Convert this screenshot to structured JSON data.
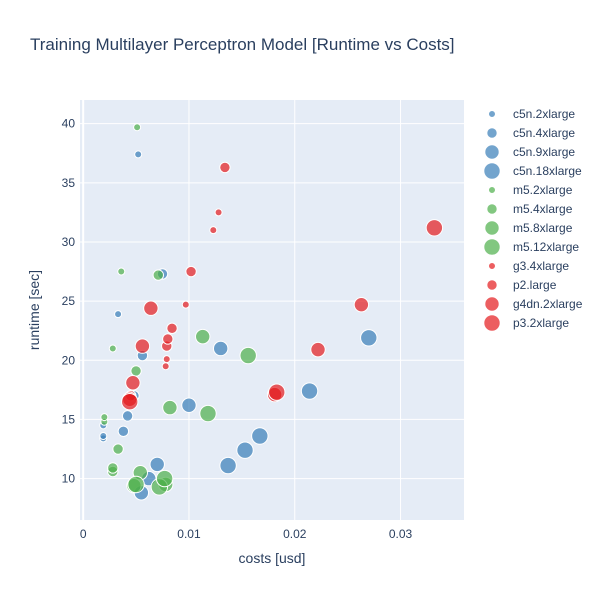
{
  "chart_data": {
    "type": "scatter",
    "title": "Training Multilayer Perceptron Model [Runtime vs Costs]",
    "xlabel": "costs [usd]",
    "ylabel": "runtime [sec]",
    "xlim": [
      -0.0003,
      0.036
    ],
    "ylim": [
      6.5,
      42
    ],
    "xticks": [
      0,
      0.01,
      0.02,
      0.03
    ],
    "xtick_labels": [
      "0",
      "0.01",
      "0.02",
      "0.03"
    ],
    "yticks": [
      10,
      15,
      20,
      25,
      30,
      35,
      40
    ],
    "ytick_labels": [
      "10",
      "15",
      "20",
      "25",
      "30",
      "35",
      "40"
    ],
    "grid": true,
    "legend_position": "right",
    "series": [
      {
        "name": "c5n.2xlarge",
        "color": "#377eb8",
        "size": 1,
        "x": [
          0.0019,
          0.0019,
          0.0019,
          0.0033,
          0.0052
        ],
        "y": [
          13.4,
          13.6,
          14.5,
          23.9,
          37.4
        ]
      },
      {
        "name": "c5n.4xlarge",
        "color": "#377eb8",
        "size": 2,
        "x": [
          0.0038,
          0.0042,
          0.0048,
          0.0056,
          0.0075
        ],
        "y": [
          14.0,
          15.3,
          17.0,
          20.4,
          27.3
        ]
      },
      {
        "name": "c5n.9xlarge",
        "color": "#377eb8",
        "size": 3,
        "x": [
          0.0055,
          0.0062,
          0.007,
          0.01,
          0.013
        ],
        "y": [
          8.8,
          10.0,
          11.2,
          16.2,
          21.0
        ]
      },
      {
        "name": "c5n.18xlarge",
        "color": "#377eb8",
        "size": 4,
        "x": [
          0.0137,
          0.0153,
          0.0167,
          0.0214,
          0.027
        ],
        "y": [
          11.1,
          12.4,
          13.6,
          17.4,
          21.9
        ]
      },
      {
        "name": "m5.2xlarge",
        "color": "#4daf4a",
        "size": 1,
        "x": [
          0.002,
          0.002,
          0.0028,
          0.0036,
          0.0051
        ],
        "y": [
          14.8,
          15.2,
          21.0,
          27.5,
          39.7
        ]
      },
      {
        "name": "m5.4xlarge",
        "color": "#4daf4a",
        "size": 2,
        "x": [
          0.0028,
          0.0028,
          0.0033,
          0.005,
          0.0071
        ],
        "y": [
          10.6,
          10.9,
          12.5,
          19.1,
          27.2
        ]
      },
      {
        "name": "m5.8xlarge",
        "color": "#4daf4a",
        "size": 3,
        "x": [
          0.0048,
          0.0054,
          0.0082,
          0.0113,
          0.0078
        ],
        "y": [
          9.4,
          10.5,
          16.0,
          22.0,
          9.5
        ]
      },
      {
        "name": "m5.12xlarge",
        "color": "#4daf4a",
        "size": 4,
        "x": [
          0.005,
          0.0072,
          0.0077,
          0.0118,
          0.0156
        ],
        "y": [
          9.5,
          9.3,
          10.0,
          15.5,
          20.4
        ]
      },
      {
        "name": "g3.4xlarge",
        "color": "#e41a1c",
        "size": 1,
        "x": [
          0.0078,
          0.0079,
          0.0097,
          0.0123,
          0.0128
        ],
        "y": [
          19.5,
          20.1,
          24.7,
          31.0,
          32.5
        ]
      },
      {
        "name": "p2.large",
        "color": "#e41a1c",
        "size": 2,
        "x": [
          0.0045,
          0.0079,
          0.008,
          0.0084,
          0.0102,
          0.0134
        ],
        "y": [
          17.0,
          21.2,
          21.8,
          22.7,
          27.5,
          36.3
        ]
      },
      {
        "name": "g4dn.2xlarge",
        "color": "#e41a1c",
        "size": 3,
        "x": [
          0.0044,
          0.0047,
          0.0056,
          0.0064,
          0.0181,
          0.0222,
          0.0263
        ],
        "y": [
          16.7,
          18.1,
          21.2,
          24.4,
          17.1,
          20.9,
          24.7
        ]
      },
      {
        "name": "p3.2xlarge",
        "color": "#e41a1c",
        "size": 4,
        "x": [
          0.0044,
          0.0183,
          0.0332
        ],
        "y": [
          16.5,
          17.3,
          31.2
        ]
      }
    ]
  }
}
